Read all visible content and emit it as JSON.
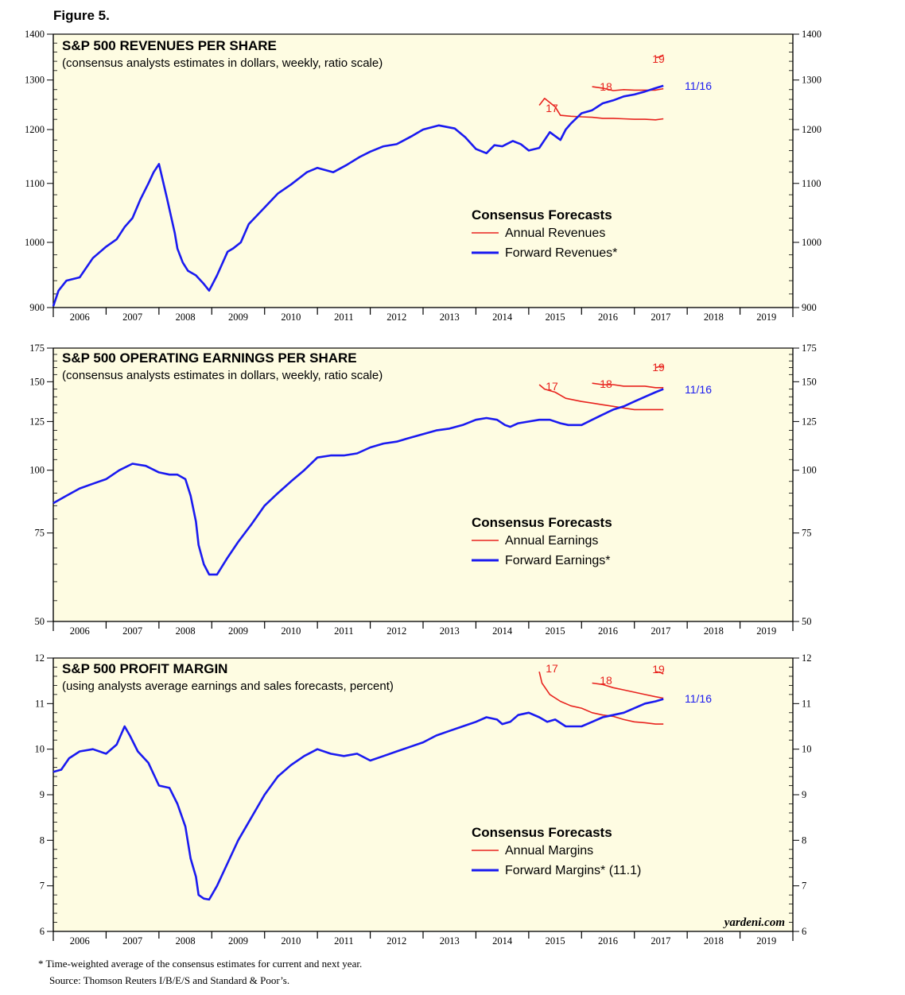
{
  "figure_label": "Figure 5.",
  "colors": {
    "panel_bg": "#FEFCE2",
    "annual": "#E8231E",
    "forward": "#1A1AF0",
    "axis": "#000000"
  },
  "footnote": "*  Time-weighted average of the consensus estimates for current and next year.",
  "source": "Source: Thomson Reuters I/B/E/S and Standard & Poor’s.",
  "watermark": "yardeni.com",
  "chart_data": [
    {
      "type": "line",
      "title": "S&P 500 REVENUES PER SHARE",
      "subtitle": "(consensus analysts estimates in dollars, weekly, ratio scale)",
      "scale": "log",
      "ylim": [
        900,
        1400
      ],
      "yticks": [
        900,
        1000,
        1100,
        1200,
        1300,
        1400
      ],
      "xlim": [
        2006.0,
        2020.0
      ],
      "x_labels": [
        "2006",
        "2007",
        "2008",
        "2009",
        "2010",
        "2011",
        "2012",
        "2013",
        "2014",
        "2015",
        "2016",
        "2017",
        "2018",
        "2019"
      ],
      "legend": {
        "title": "Consensus Forecasts",
        "annual": "Annual Revenues",
        "forward": "Forward Revenues*"
      },
      "forward_end_label": "11/16",
      "forward": {
        "x": [
          2006.0,
          2006.1,
          2006.25,
          2006.5,
          2006.75,
          2007.0,
          2007.2,
          2007.35,
          2007.5,
          2007.65,
          2007.8,
          2007.9,
          2008.0,
          2008.15,
          2008.3,
          2008.35,
          2008.45,
          2008.55,
          2008.7,
          2008.85,
          2008.95,
          2009.1,
          2009.3,
          2009.4,
          2009.55,
          2009.7,
          2010.0,
          2010.25,
          2010.5,
          2010.8,
          2011.0,
          2011.3,
          2011.55,
          2011.8,
          2012.0,
          2012.25,
          2012.5,
          2012.8,
          2013.0,
          2013.3,
          2013.6,
          2013.8,
          2014.0,
          2014.2,
          2014.35,
          2014.5,
          2014.7,
          2014.85,
          2015.0,
          2015.2,
          2015.4,
          2015.6,
          2015.7,
          2015.8,
          2016.0,
          2016.2,
          2016.4,
          2016.6,
          2016.8,
          2017.0,
          2017.2,
          2017.4,
          2017.55
        ],
        "y": [
          902,
          925,
          940,
          945,
          975,
          993,
          1005,
          1025,
          1040,
          1072,
          1100,
          1120,
          1135,
          1075,
          1015,
          990,
          968,
          955,
          948,
          935,
          925,
          948,
          985,
          990,
          1000,
          1030,
          1058,
          1082,
          1098,
          1120,
          1128,
          1120,
          1133,
          1148,
          1158,
          1168,
          1172,
          1188,
          1200,
          1208,
          1202,
          1185,
          1163,
          1155,
          1170,
          1168,
          1178,
          1172,
          1160,
          1165,
          1195,
          1180,
          1200,
          1212,
          1232,
          1238,
          1252,
          1258,
          1266,
          1270,
          1276,
          1283,
          1288
        ]
      },
      "annual": [
        {
          "label": "17",
          "x": [
            2015.2,
            2015.3,
            2015.5,
            2015.6,
            2015.8,
            2016.0,
            2016.2,
            2016.4,
            2016.6,
            2016.8,
            2017.0,
            2017.2,
            2017.4,
            2017.55
          ],
          "y": [
            1248,
            1262,
            1245,
            1228,
            1226,
            1225,
            1224,
            1222,
            1222,
            1221,
            1220,
            1220,
            1219,
            1221
          ]
        },
        {
          "label": "18",
          "x": [
            2016.2,
            2016.4,
            2016.6,
            2016.8,
            2017.0,
            2017.2,
            2017.4,
            2017.55
          ],
          "y": [
            1286,
            1283,
            1278,
            1280,
            1279,
            1279,
            1279,
            1282
          ]
        },
        {
          "label": "19",
          "x": [
            2017.4,
            2017.5,
            2017.55
          ],
          "y": [
            1348,
            1350,
            1354
          ]
        }
      ]
    },
    {
      "type": "line",
      "title": "S&P 500 OPERATING EARNINGS PER SHARE",
      "subtitle": "(consensus analysts estimates in dollars, weekly, ratio scale)",
      "scale": "log",
      "ylim": [
        50,
        175
      ],
      "yticks": [
        50,
        75,
        100,
        125,
        150,
        175
      ],
      "xlim": [
        2006.0,
        2020.0
      ],
      "x_labels": [
        "2006",
        "2007",
        "2008",
        "2009",
        "2010",
        "2011",
        "2012",
        "2013",
        "2014",
        "2015",
        "2016",
        "2017",
        "2018",
        "2019"
      ],
      "legend": {
        "title": "Consensus Forecasts",
        "annual": "Annual Earnings",
        "forward": "Forward Earnings*"
      },
      "forward_end_label": "11/16",
      "forward": {
        "x": [
          2006.0,
          2006.25,
          2006.5,
          2006.75,
          2007.0,
          2007.25,
          2007.5,
          2007.75,
          2008.0,
          2008.2,
          2008.35,
          2008.5,
          2008.6,
          2008.7,
          2008.75,
          2008.85,
          2008.95,
          2009.1,
          2009.3,
          2009.5,
          2009.75,
          2010.0,
          2010.25,
          2010.5,
          2010.75,
          2011.0,
          2011.25,
          2011.5,
          2011.75,
          2012.0,
          2012.25,
          2012.5,
          2012.75,
          2013.0,
          2013.25,
          2013.5,
          2013.75,
          2014.0,
          2014.2,
          2014.4,
          2014.55,
          2014.65,
          2014.8,
          2015.0,
          2015.2,
          2015.4,
          2015.6,
          2015.75,
          2015.9,
          2016.0,
          2016.2,
          2016.4,
          2016.6,
          2016.8,
          2017.0,
          2017.2,
          2017.4,
          2017.55
        ],
        "y": [
          86,
          89,
          92,
          94,
          96,
          100,
          103,
          102,
          99,
          98,
          98,
          96,
          89,
          79,
          71,
          65,
          62,
          62,
          67,
          72,
          78,
          85,
          90,
          95,
          100,
          106,
          107,
          107,
          108,
          111,
          113,
          114,
          116,
          118,
          120,
          121,
          123,
          126,
          127,
          126,
          123,
          122,
          124,
          125,
          126,
          126,
          124,
          123,
          123,
          123,
          126,
          129,
          132,
          134,
          137,
          140,
          143,
          145
        ]
      },
      "annual": [
        {
          "label": "17",
          "x": [
            2015.2,
            2015.3,
            2015.5,
            2015.7,
            2016.0,
            2016.2,
            2016.4,
            2016.6,
            2016.8,
            2017.0,
            2017.2,
            2017.4,
            2017.55
          ],
          "y": [
            148,
            145,
            143,
            139,
            137,
            136,
            135,
            134,
            133,
            132,
            132,
            132,
            132
          ]
        },
        {
          "label": "18",
          "x": [
            2016.2,
            2016.4,
            2016.6,
            2016.8,
            2017.0,
            2017.2,
            2017.4,
            2017.55
          ],
          "y": [
            149,
            148,
            148,
            147,
            147,
            147,
            146,
            146
          ]
        },
        {
          "label": "19",
          "x": [
            2017.4,
            2017.5,
            2017.55
          ],
          "y": [
            160,
            161,
            161
          ]
        }
      ]
    },
    {
      "type": "line",
      "title": "S&P 500 PROFIT MARGIN",
      "subtitle": "(using analysts average earnings and sales forecasts, percent)",
      "scale": "linear",
      "ylim": [
        6,
        12
      ],
      "yticks": [
        6,
        7,
        8,
        9,
        10,
        11,
        12
      ],
      "xlim": [
        2006.0,
        2020.0
      ],
      "x_labels": [
        "2006",
        "2007",
        "2008",
        "2009",
        "2010",
        "2011",
        "2012",
        "2013",
        "2014",
        "2015",
        "2016",
        "2017",
        "2018",
        "2019"
      ],
      "legend": {
        "title": "Consensus Forecasts",
        "annual": "Annual Margins",
        "forward": "Forward Margins* (11.1)"
      },
      "forward_end_label": "11/16",
      "forward": {
        "x": [
          2006.0,
          2006.15,
          2006.3,
          2006.5,
          2006.75,
          2007.0,
          2007.2,
          2007.35,
          2007.45,
          2007.6,
          2007.8,
          2008.0,
          2008.2,
          2008.35,
          2008.5,
          2008.6,
          2008.7,
          2008.75,
          2008.85,
          2008.95,
          2009.1,
          2009.3,
          2009.5,
          2009.75,
          2010.0,
          2010.25,
          2010.5,
          2010.75,
          2011.0,
          2011.25,
          2011.5,
          2011.75,
          2012.0,
          2012.25,
          2012.5,
          2012.75,
          2013.0,
          2013.25,
          2013.5,
          2013.75,
          2014.0,
          2014.2,
          2014.4,
          2014.5,
          2014.65,
          2014.8,
          2015.0,
          2015.2,
          2015.35,
          2015.5,
          2015.7,
          2015.9,
          2016.0,
          2016.2,
          2016.4,
          2016.6,
          2016.8,
          2017.0,
          2017.2,
          2017.4,
          2017.55
        ],
        "y": [
          9.5,
          9.55,
          9.8,
          9.95,
          10.0,
          9.9,
          10.1,
          10.5,
          10.3,
          9.95,
          9.7,
          9.2,
          9.15,
          8.8,
          8.3,
          7.6,
          7.2,
          6.8,
          6.72,
          6.7,
          7.0,
          7.5,
          8.0,
          8.5,
          9.0,
          9.4,
          9.65,
          9.85,
          10.0,
          9.9,
          9.85,
          9.9,
          9.75,
          9.85,
          9.95,
          10.05,
          10.15,
          10.3,
          10.4,
          10.5,
          10.6,
          10.7,
          10.65,
          10.55,
          10.6,
          10.75,
          10.8,
          10.7,
          10.6,
          10.65,
          10.5,
          10.5,
          10.5,
          10.6,
          10.7,
          10.75,
          10.8,
          10.9,
          11.0,
          11.05,
          11.1
        ]
      },
      "annual": [
        {
          "label": "17",
          "x": [
            2015.2,
            2015.25,
            2015.4,
            2015.6,
            2015.8,
            2016.0,
            2016.2,
            2016.4,
            2016.6,
            2016.8,
            2017.0,
            2017.2,
            2017.4,
            2017.55
          ],
          "y": [
            11.7,
            11.45,
            11.2,
            11.05,
            10.95,
            10.9,
            10.8,
            10.75,
            10.72,
            10.65,
            10.6,
            10.58,
            10.55,
            10.55
          ]
        },
        {
          "label": "18",
          "x": [
            2016.2,
            2016.4,
            2016.6,
            2016.8,
            2017.0,
            2017.2,
            2017.4,
            2017.55
          ],
          "y": [
            11.45,
            11.42,
            11.35,
            11.3,
            11.25,
            11.2,
            11.15,
            11.12
          ]
        },
        {
          "label": "19",
          "x": [
            2017.4,
            2017.5,
            2017.55
          ],
          "y": [
            11.7,
            11.68,
            11.65
          ]
        }
      ]
    }
  ]
}
